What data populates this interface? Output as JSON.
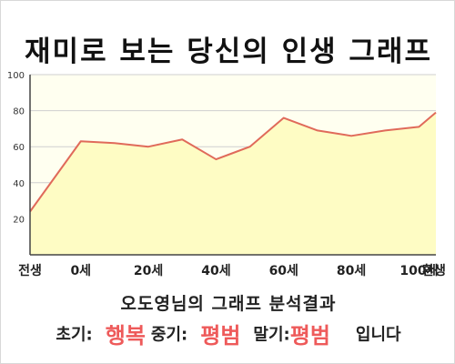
{
  "title": "재미로 보는 당신의 인생 그래프",
  "subtitle": "오도영님의 그래프 분석결과",
  "result": {
    "early_label": "초기:",
    "early_value": "행복",
    "mid_label": "중기:",
    "mid_value": "평범",
    "late_label": "말기:",
    "late_value": "평범",
    "suffix": "입니다"
  },
  "colors": {
    "line": "#e06a5a",
    "fill": "#fefcc4",
    "plot_bg": "#fffff0",
    "grid": "#cfcfcf",
    "accent": "#ee5a5a"
  },
  "chart_data": {
    "type": "area",
    "title": "",
    "xlabel": "",
    "ylabel": "",
    "ylim": [
      0,
      100
    ],
    "yticks": [
      20,
      40,
      60,
      80,
      100
    ],
    "xlim": [
      0,
      12
    ],
    "xticks": [
      {
        "x": 0,
        "label": "전생"
      },
      {
        "x": 1.5,
        "label": "0세"
      },
      {
        "x": 3.5,
        "label": "20세"
      },
      {
        "x": 5.5,
        "label": "40세"
      },
      {
        "x": 7.5,
        "label": "60세"
      },
      {
        "x": 9.5,
        "label": "80세"
      },
      {
        "x": 11.5,
        "label": "100세"
      },
      {
        "x": 12,
        "label": "환생"
      }
    ],
    "grid": true,
    "series": [
      {
        "x": [
          0,
          1.5,
          2.5,
          3.5,
          4.5,
          5.5,
          6.5,
          7.5,
          8.5,
          9.5,
          10.5,
          11.5,
          12
        ],
        "values": [
          24,
          63,
          62,
          60,
          64,
          53,
          60,
          76,
          69,
          66,
          69,
          71,
          79
        ]
      }
    ]
  }
}
